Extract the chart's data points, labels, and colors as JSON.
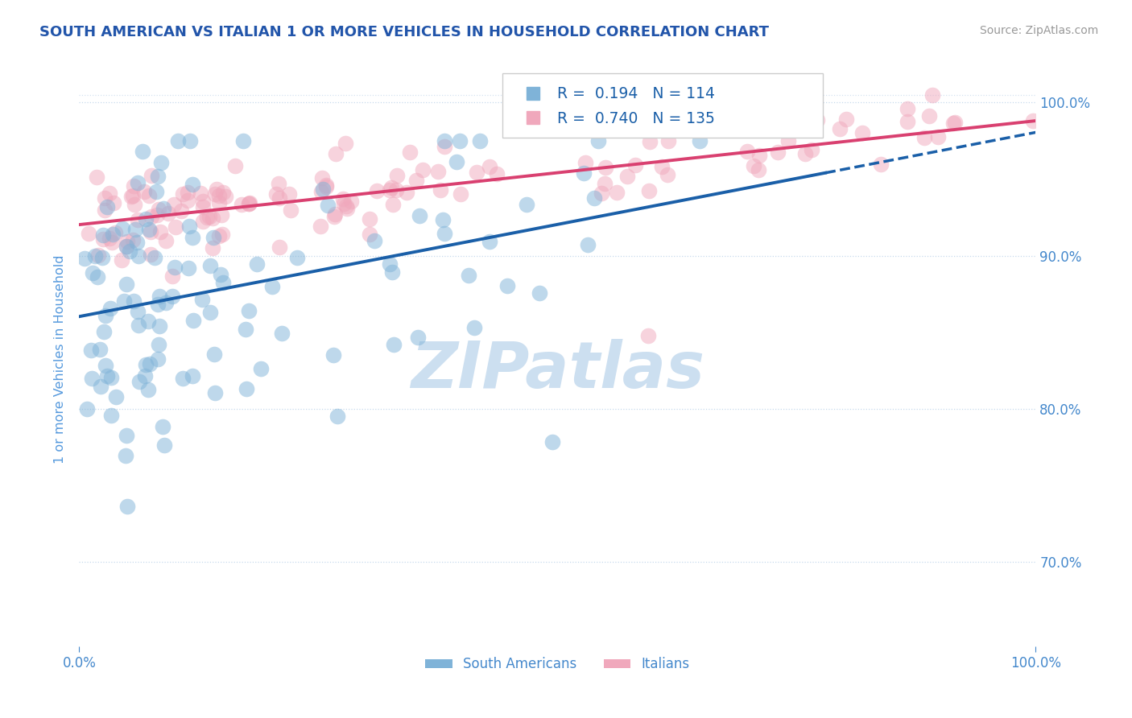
{
  "title": "SOUTH AMERICAN VS ITALIAN 1 OR MORE VEHICLES IN HOUSEHOLD CORRELATION CHART",
  "source": "Source: ZipAtlas.com",
  "ylabel": "1 or more Vehicles in Household",
  "ytick_values": [
    70.0,
    80.0,
    90.0,
    100.0
  ],
  "xlim": [
    0.0,
    1.0
  ],
  "ylim": [
    0.645,
    1.02
  ],
  "legend_blue_label": "South Americans",
  "legend_pink_label": "Italians",
  "r_blue": 0.194,
  "n_blue": 114,
  "r_pink": 0.74,
  "n_pink": 135,
  "blue_color": "#7fb3d8",
  "pink_color": "#f0a8bc",
  "trend_blue_color": "#1a5fa8",
  "trend_pink_color": "#d94070",
  "title_color": "#2255aa",
  "axis_label_color": "#5599dd",
  "tick_label_color": "#4488cc",
  "watermark_color": "#ccdff0",
  "background_color": "#ffffff",
  "grid_color": "#b8d0e8"
}
